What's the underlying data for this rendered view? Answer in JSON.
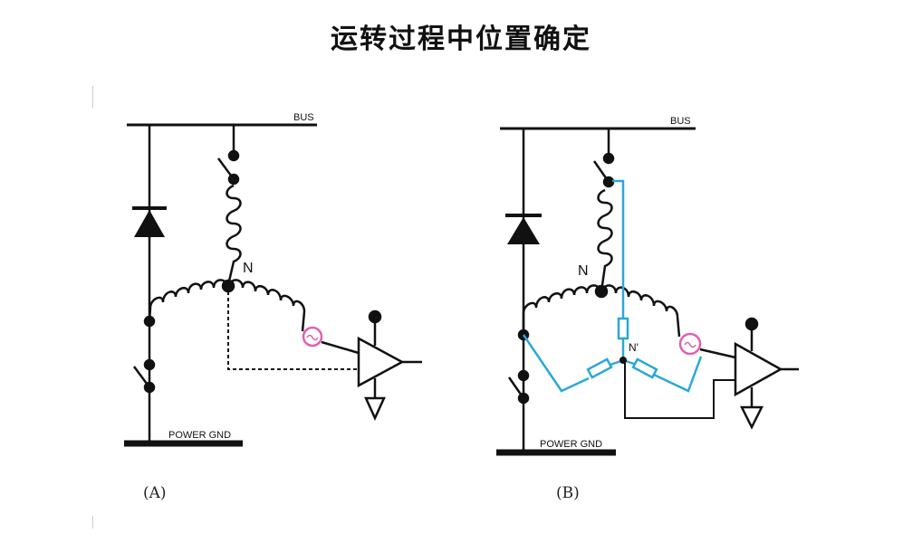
{
  "title": "运转过程中位置确定",
  "watermark": "",
  "diagram_a": {
    "caption": "(A)",
    "bus_label": "BUS",
    "gnd_label": "POWER GND",
    "neutral_label": "N"
  },
  "diagram_b": {
    "caption": "(B)",
    "bus_label": "BUS",
    "gnd_label": "POWER GND",
    "neutral_label": "N",
    "virtual_neutral_label": "N'"
  },
  "colors": {
    "wire": "#111111",
    "resistor_network": "#2aa8d8",
    "sense_circle": "#e060b0"
  }
}
